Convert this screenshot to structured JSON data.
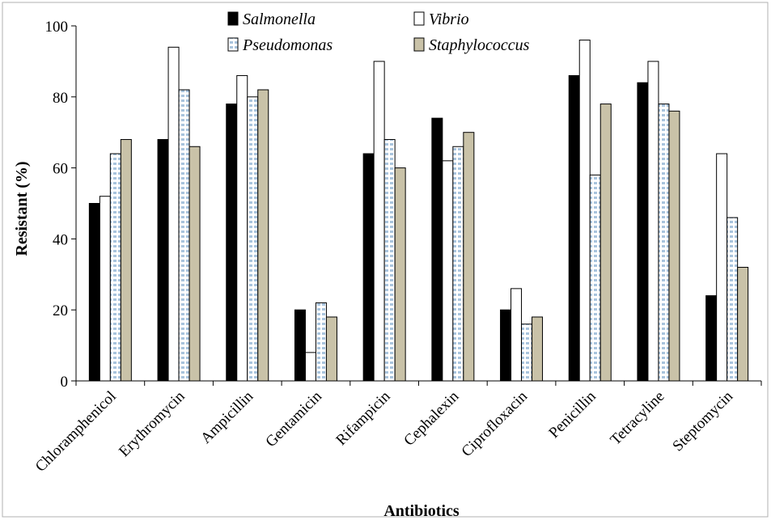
{
  "chart_data": {
    "type": "bar",
    "title": "",
    "xlabel": "Antibiotics",
    "ylabel": "Resistant (%)",
    "ylim": [
      0,
      100
    ],
    "yticks": [
      0,
      20,
      40,
      60,
      80,
      100
    ],
    "grid": false,
    "legend_position": "top",
    "categories": [
      "Chloramphenicol",
      "Erythromycin",
      "Ampicillin",
      "Gentamicin",
      "Rifampicin",
      "Cephalexin",
      "Ciprofloxacin",
      "Penicillin",
      "Tetracyline",
      "Steptomycin"
    ],
    "series": [
      {
        "name": "Salmonella",
        "values": [
          50,
          68,
          78,
          20,
          64,
          74,
          20,
          86,
          84,
          24
        ],
        "fill": "#000000",
        "pattern": "solid"
      },
      {
        "name": "Vibrio",
        "values": [
          52,
          94,
          86,
          8,
          90,
          62,
          26,
          96,
          90,
          64
        ],
        "fill": "#ffffff",
        "pattern": "solid"
      },
      {
        "name": "Pseudomonas",
        "values": [
          64,
          82,
          80,
          22,
          68,
          66,
          16,
          58,
          78,
          46
        ],
        "fill": "#a9c4dd",
        "pattern": "grid"
      },
      {
        "name": "Staphylococcus",
        "values": [
          68,
          66,
          82,
          18,
          60,
          70,
          18,
          78,
          76,
          32
        ],
        "fill": "#c9c2a8",
        "pattern": "solid"
      }
    ]
  }
}
